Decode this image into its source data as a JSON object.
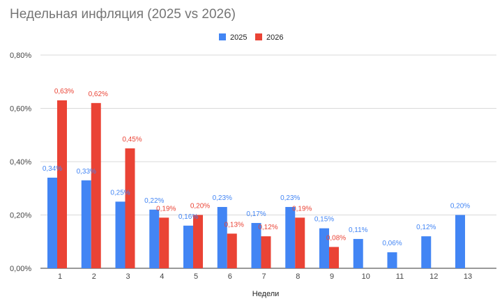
{
  "chart_data": {
    "type": "bar",
    "title": "Недельная инфляция (2025 vs 2026)",
    "xlabel": "Недели",
    "ylabel": "",
    "categories": [
      "1",
      "2",
      "3",
      "4",
      "5",
      "6",
      "7",
      "8",
      "9",
      "10",
      "11",
      "12",
      "13"
    ],
    "ylim": [
      0,
      0.8
    ],
    "yticks": [
      "0,00%",
      "0,20%",
      "0,40%",
      "0,60%",
      "0,80%"
    ],
    "grid": true,
    "legend": "top-center",
    "series": [
      {
        "name": "2025",
        "color": "#4285f4",
        "values": [
          0.34,
          0.33,
          0.25,
          0.22,
          0.16,
          0.23,
          0.17,
          0.23,
          0.15,
          0.11,
          0.06,
          0.12,
          0.2
        ],
        "labels": [
          "0,34%",
          "0,33%",
          "0,25%",
          "0,22%",
          "0,16%",
          "0,23%",
          "0,17%",
          "0,23%",
          "0,15%",
          "0,11%",
          "0,06%",
          "0,12%",
          "0,20%"
        ]
      },
      {
        "name": "2026",
        "color": "#ea4335",
        "values": [
          0.63,
          0.62,
          0.45,
          0.19,
          0.2,
          0.13,
          0.12,
          0.19,
          0.08,
          null,
          null,
          null,
          null
        ],
        "labels": [
          "0,63%",
          "0,62%",
          "0,45%",
          "0,19%",
          "0,20%",
          "0,13%",
          "0,12%",
          "0,19%",
          "0,08%",
          null,
          null,
          null,
          null
        ]
      }
    ]
  }
}
